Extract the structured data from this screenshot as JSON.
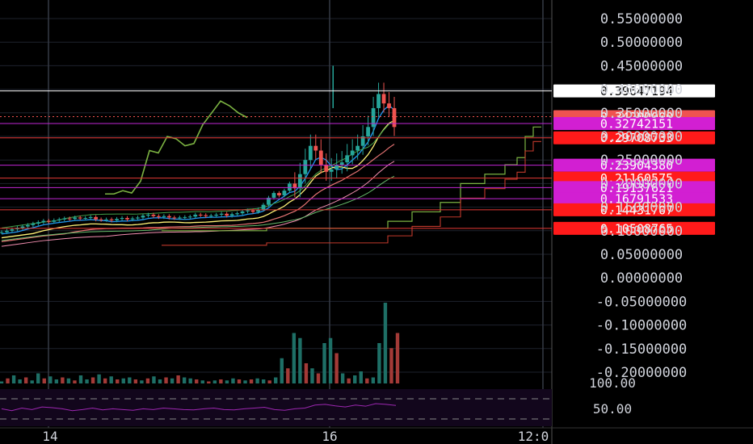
{
  "colors": {
    "background": "#000000",
    "up": "#26a69a",
    "down": "#ef5350",
    "white_line": "#ffffff",
    "red_level": "#ff1a1a",
    "magenta_level": "#e040fb",
    "label_text": "#ffffff",
    "axis_text": "#d1d4dc",
    "rsi_line": "#9c27b0",
    "green_indicator": "#7cb342"
  },
  "y_axis": {
    "ticks": [
      "0.55000000",
      "0.50000000",
      "0.45000000",
      "0.40000000",
      "0.35000000",
      "0.30000000",
      "0.25000000",
      "0.20000000",
      "0.15000000",
      "0.10000000",
      "0.05000000",
      "0.00000000",
      "-0.05000000",
      "-0.10000000",
      "-0.15000000",
      "-0.20000000"
    ],
    "tick_values": [
      0.55,
      0.5,
      0.45,
      0.4,
      0.35,
      0.3,
      0.25,
      0.2,
      0.15,
      0.1,
      0.05,
      0.0,
      -0.05,
      -0.1,
      -0.15,
      -0.2
    ]
  },
  "rsi_axis": {
    "ticks": [
      "100.00",
      "50.00"
    ]
  },
  "x_axis": {
    "ticks": [
      "14",
      "16",
      "12:0"
    ]
  },
  "levels": [
    {
      "label": "0.39647194",
      "value": 0.39647194,
      "style": "white"
    },
    {
      "label": "0.34200000",
      "value": 0.342,
      "style": "salmon"
    },
    {
      "label": "0.32742151",
      "value": 0.32742151,
      "style": "magenta"
    },
    {
      "label": "0.29708733",
      "value": 0.29708733,
      "style": "red"
    },
    {
      "label": "0.23904380",
      "value": 0.2390438,
      "style": "magenta"
    },
    {
      "label": "0.21160575",
      "value": 0.21160575,
      "style": "red"
    },
    {
      "label": "0.19137621",
      "value": 0.19137621,
      "style": "magenta"
    },
    {
      "label": "0.16791533",
      "value": 0.16791533,
      "style": "magenta"
    },
    {
      "label": "0.14431707",
      "value": 0.14431707,
      "style": "red"
    },
    {
      "label": "0.10508765",
      "value": 0.10508765,
      "style": "red"
    }
  ],
  "chart_data": {
    "type": "candlestick",
    "title": "",
    "ylim": [
      -0.2,
      0.55
    ],
    "grid": true,
    "price_series": [
      0.097,
      0.1,
      0.103,
      0.106,
      0.109,
      0.112,
      0.115,
      0.118,
      0.121,
      0.119,
      0.122,
      0.124,
      0.126,
      0.125,
      0.128,
      0.126,
      0.127,
      0.129,
      0.124,
      0.123,
      0.124,
      0.122,
      0.125,
      0.127,
      0.124,
      0.126,
      0.128,
      0.132,
      0.134,
      0.131,
      0.129,
      0.131,
      0.128,
      0.127,
      0.128,
      0.129,
      0.13,
      0.134,
      0.133,
      0.131,
      0.132,
      0.134,
      0.136,
      0.132,
      0.135,
      0.137,
      0.141,
      0.143,
      0.14,
      0.145,
      0.155,
      0.17,
      0.18,
      0.175,
      0.185,
      0.2,
      0.19,
      0.22,
      0.25,
      0.28,
      0.27,
      0.24,
      0.225,
      0.23,
      0.24,
      0.245,
      0.26,
      0.27,
      0.28,
      0.3,
      0.32,
      0.36,
      0.39,
      0.37,
      0.36,
      0.32
    ],
    "volume_series": [
      0.02,
      0.05,
      0.08,
      0.04,
      0.06,
      0.03,
      0.1,
      0.05,
      0.07,
      0.04,
      0.06,
      0.05,
      0.03,
      0.08,
      0.04,
      0.06,
      0.09,
      0.05,
      0.07,
      0.04,
      0.05,
      0.06,
      0.04,
      0.03,
      0.05,
      0.07,
      0.04,
      0.06,
      0.05,
      0.08,
      0.06,
      0.05,
      0.04,
      0.03,
      0.02,
      0.03,
      0.04,
      0.03,
      0.05,
      0.04,
      0.03,
      0.04,
      0.05,
      0.04,
      0.03,
      0.06,
      0.25,
      0.15,
      0.5,
      0.45,
      0.2,
      0.15,
      0.1,
      0.4,
      0.45,
      0.3,
      0.1,
      0.05,
      0.08,
      0.12,
      0.05,
      0.06,
      0.4,
      0.8,
      0.35,
      0.5
    ],
    "volume_up_mask": [
      1,
      0,
      1,
      1,
      0,
      1,
      1,
      0,
      1,
      1,
      0,
      1,
      0,
      1,
      1,
      0,
      1,
      0,
      1,
      0,
      1,
      1,
      0,
      1,
      0,
      1,
      1,
      0,
      1,
      0,
      1,
      1,
      0,
      1,
      0,
      1,
      0,
      1,
      1,
      0,
      1,
      0,
      1,
      1,
      0,
      1,
      1,
      0,
      1,
      1,
      0,
      1,
      0,
      1,
      1,
      0,
      1,
      0,
      1,
      1,
      0,
      1,
      1,
      1,
      0,
      0
    ],
    "green_indicator": [
      [
        0.155,
        0.178
      ],
      [
        0.165,
        0.178
      ],
      [
        0.18,
        0.185
      ],
      [
        0.19,
        0.18
      ],
      [
        0.21,
        0.205
      ],
      [
        0.22,
        0.27
      ],
      [
        0.23,
        0.265
      ],
      [
        0.24,
        0.3
      ],
      [
        0.255,
        0.295
      ],
      [
        0.265,
        0.28
      ],
      [
        0.27,
        0.285
      ],
      [
        0.275,
        0.325
      ],
      [
        0.29,
        0.35
      ],
      [
        0.3,
        0.375
      ],
      [
        0.31,
        0.365
      ],
      [
        0.325,
        0.35
      ],
      [
        0.335,
        0.34
      ]
    ],
    "rsi_series": [
      60,
      55,
      62,
      58,
      65,
      63,
      60,
      55,
      58,
      62,
      57,
      60,
      58,
      56,
      60,
      58,
      62,
      60,
      58,
      57,
      60,
      62,
      58,
      57,
      60,
      62,
      64,
      58,
      56,
      60,
      62,
      70,
      72,
      68,
      65,
      70,
      67,
      74,
      72,
      69
    ]
  }
}
